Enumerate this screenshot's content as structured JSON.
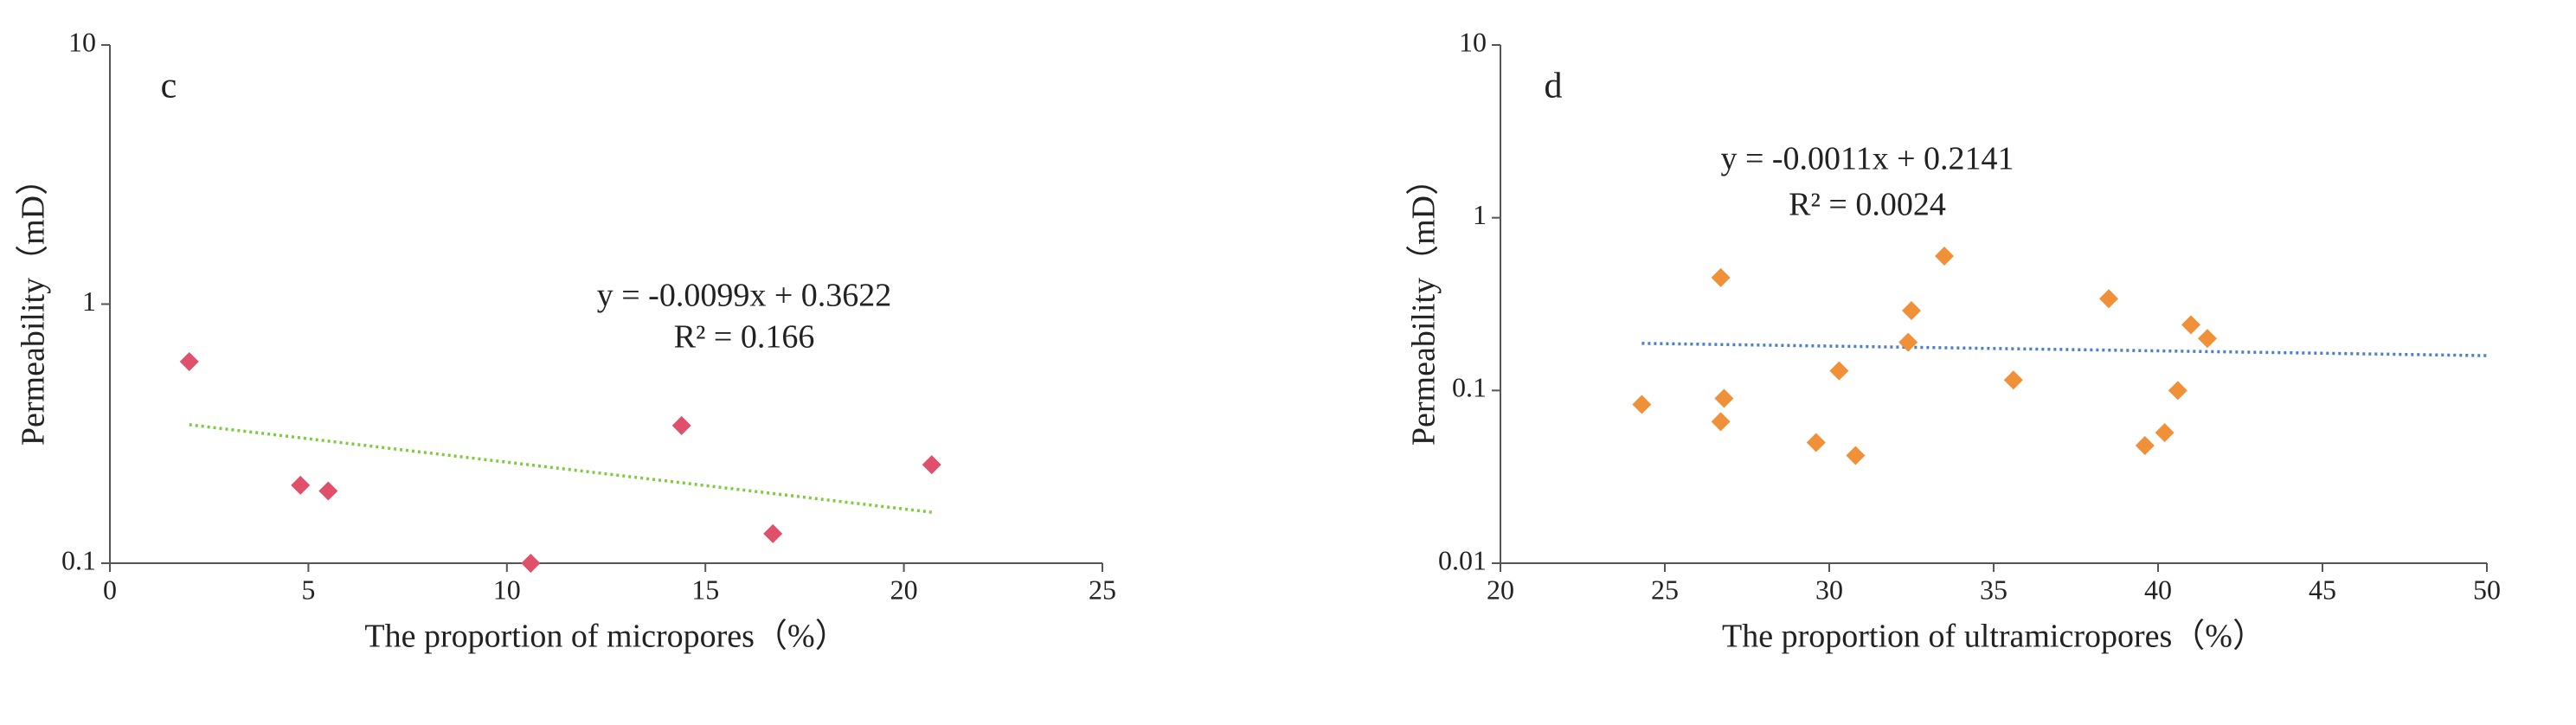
{
  "chart_data": [
    {
      "type": "scatter",
      "panel_label": "c",
      "x_label": "The proportion of micropores（%）",
      "y_label": "Permeability（mD）",
      "annotations": [
        "y = -0.0099x + 0.3622",
        "R² = 0.166"
      ],
      "xlim": [
        0,
        25
      ],
      "xticks": [
        0,
        5,
        10,
        15,
        20,
        25
      ],
      "ylim": [
        0.1,
        10
      ],
      "yticks": [
        0.1,
        1,
        10
      ],
      "ylog": true,
      "series": [
        {
          "color": "#e0506a",
          "x": [
            2.0,
            4.8,
            5.5,
            10.6,
            14.4,
            16.7,
            20.7
          ],
          "values": [
            0.6,
            0.2,
            0.19,
            0.1,
            0.34,
            0.13,
            0.24
          ]
        }
      ],
      "trendline": {
        "color": "#7ccc3c",
        "x": [
          2.0,
          20.7
        ],
        "values": [
          0.3424,
          0.1573
        ]
      }
    },
    {
      "type": "scatter",
      "panel_label": "d",
      "x_label": "The proportion of ultramicropores（%）",
      "y_label": "Permeability（mD）",
      "annotations": [
        "y = -0.0011x + 0.2141",
        "R² = 0.0024"
      ],
      "xlim": [
        20,
        50
      ],
      "xticks": [
        20,
        25,
        30,
        35,
        40,
        45,
        50
      ],
      "ylim": [
        0.01,
        10
      ],
      "yticks": [
        0.01,
        0.1,
        1,
        10
      ],
      "ylog": true,
      "series": [
        {
          "color": "#f0913a",
          "x": [
            24.3,
            26.7,
            26.8,
            26.7,
            29.6,
            30.3,
            30.8,
            32.4,
            32.5,
            33.5,
            35.6,
            38.5,
            39.6,
            40.2,
            40.6,
            41.0,
            41.5
          ],
          "values": [
            0.083,
            0.45,
            0.09,
            0.066,
            0.05,
            0.13,
            0.042,
            0.19,
            0.29,
            0.6,
            0.115,
            0.34,
            0.048,
            0.057,
            0.1,
            0.24,
            0.2
          ]
        }
      ],
      "trendline": {
        "color": "#4a7fcf",
        "x": [
          24.3,
          50
        ],
        "values": [
          0.1874,
          0.1591
        ]
      }
    }
  ]
}
